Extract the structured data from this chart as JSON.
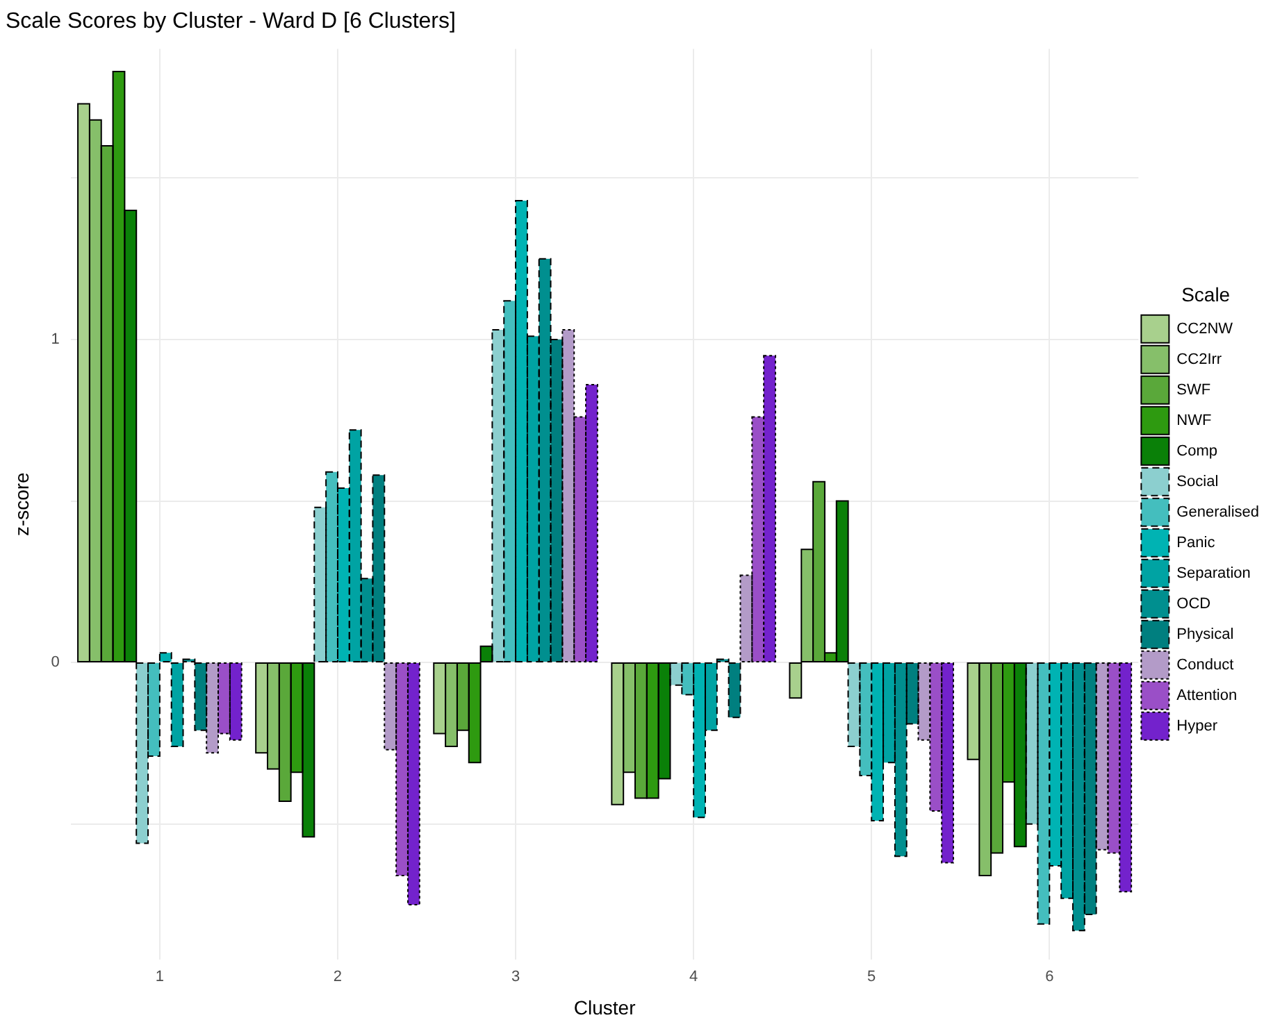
{
  "chart_data": {
    "type": "bar",
    "title": "Scale Scores by Cluster - Ward D [6 Clusters]",
    "xlabel": "Cluster",
    "ylabel": "z-score",
    "legend_title": "Scale",
    "legend": "right",
    "grid": true,
    "categories": [
      "1",
      "2",
      "3",
      "4",
      "5",
      "6"
    ],
    "ylim": [
      -0.92,
      1.9
    ],
    "yticks": [
      {
        "value": -0.5,
        "label": null
      },
      0,
      {
        "value": 0.5,
        "label": null
      },
      1,
      {
        "value": 1.5,
        "label": null
      }
    ],
    "series": [
      {
        "name": "CC2NW",
        "color": "#a8d08d",
        "line_style": "solid",
        "values": [
          1.73,
          -0.28,
          -0.22,
          -0.44,
          -0.11,
          -0.3
        ]
      },
      {
        "name": "CC2Irr",
        "color": "#86bf6a",
        "line_style": "solid",
        "values": [
          1.68,
          -0.33,
          -0.26,
          -0.34,
          0.35,
          -0.66
        ]
      },
      {
        "name": "SWF",
        "color": "#5aa83a",
        "line_style": "solid",
        "values": [
          1.6,
          -0.43,
          -0.21,
          -0.42,
          0.56,
          -0.59
        ]
      },
      {
        "name": "NWF",
        "color": "#2e9a10",
        "line_style": "solid",
        "values": [
          1.83,
          -0.34,
          -0.31,
          -0.42,
          0.03,
          -0.37
        ]
      },
      {
        "name": "Comp",
        "color": "#0a8008",
        "line_style": "solid",
        "values": [
          1.4,
          -0.54,
          0.05,
          -0.36,
          0.5,
          -0.57
        ]
      },
      {
        "name": "Social",
        "color": "#8ccfcf",
        "line_style": "dashed",
        "values": [
          -0.56,
          0.48,
          1.03,
          -0.07,
          -0.26,
          -0.5
        ]
      },
      {
        "name": "Generalised",
        "color": "#44bebe",
        "line_style": "dashed",
        "values": [
          -0.29,
          0.59,
          1.12,
          -0.1,
          -0.35,
          -0.81
        ]
      },
      {
        "name": "Panic",
        "color": "#00b3b3",
        "line_style": "dashed",
        "values": [
          0.03,
          0.54,
          1.43,
          -0.48,
          -0.49,
          -0.63
        ]
      },
      {
        "name": "Separation",
        "color": "#00a3a3",
        "line_style": "dashed",
        "values": [
          -0.26,
          0.72,
          1.01,
          -0.21,
          -0.31,
          -0.73
        ]
      },
      {
        "name": "OCD",
        "color": "#008f8f",
        "line_style": "dashed",
        "values": [
          0.01,
          0.26,
          1.25,
          0.01,
          -0.6,
          -0.83
        ]
      },
      {
        "name": "Physical",
        "color": "#007f7f",
        "line_style": "dashed",
        "values": [
          -0.21,
          0.58,
          1.0,
          -0.17,
          -0.19,
          -0.78
        ]
      },
      {
        "name": "Conduct",
        "color": "#b39bc8",
        "line_style": "dotted",
        "values": [
          -0.28,
          -0.27,
          1.03,
          0.27,
          -0.24,
          -0.58
        ]
      },
      {
        "name": "Attention",
        "color": "#9a4fc7",
        "line_style": "dotted",
        "values": [
          -0.22,
          -0.66,
          0.76,
          0.76,
          -0.46,
          -0.59
        ]
      },
      {
        "name": "Hyper",
        "color": "#7322cc",
        "line_style": "dotted",
        "values": [
          -0.24,
          -0.75,
          0.86,
          0.95,
          -0.62,
          -0.71
        ]
      }
    ]
  }
}
